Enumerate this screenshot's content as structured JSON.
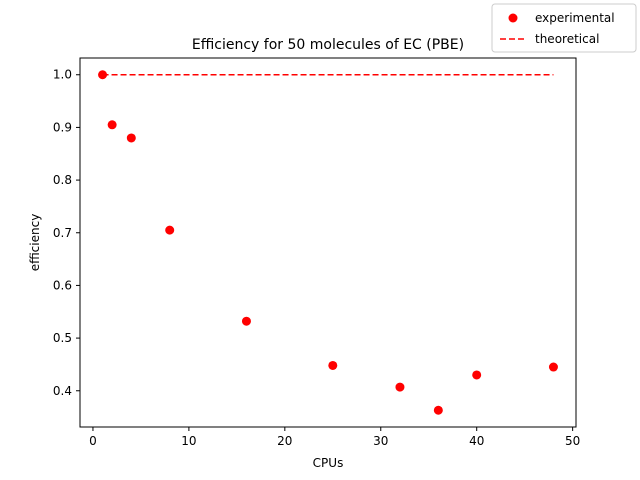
{
  "chart_data": {
    "type": "scatter",
    "title": "Efficiency for 50 molecules of EC (PBE)",
    "xlabel": "CPUs",
    "ylabel": "efficiency",
    "xlim": [
      -1.35,
      50.35
    ],
    "ylim": [
      0.3312,
      1.0318
    ],
    "xticks": [
      0,
      10,
      20,
      30,
      40,
      50
    ],
    "yticks": [
      0.4,
      0.5,
      0.6,
      0.7,
      0.8,
      0.9,
      1.0
    ],
    "grid": false,
    "legend_placement": "top-right",
    "series": [
      {
        "name": "experimental",
        "kind": "scatter",
        "color": "#ff0000",
        "x": [
          1,
          2,
          4,
          8,
          16,
          25,
          32,
          36,
          40,
          48
        ],
        "y": [
          1.0,
          0.905,
          0.88,
          0.705,
          0.532,
          0.448,
          0.407,
          0.363,
          0.43,
          0.445
        ]
      },
      {
        "name": "theoretical",
        "kind": "line",
        "style": "dashed",
        "color": "#ff0000",
        "x": [
          1,
          48
        ],
        "y": [
          1.0,
          1.0
        ]
      }
    ]
  }
}
